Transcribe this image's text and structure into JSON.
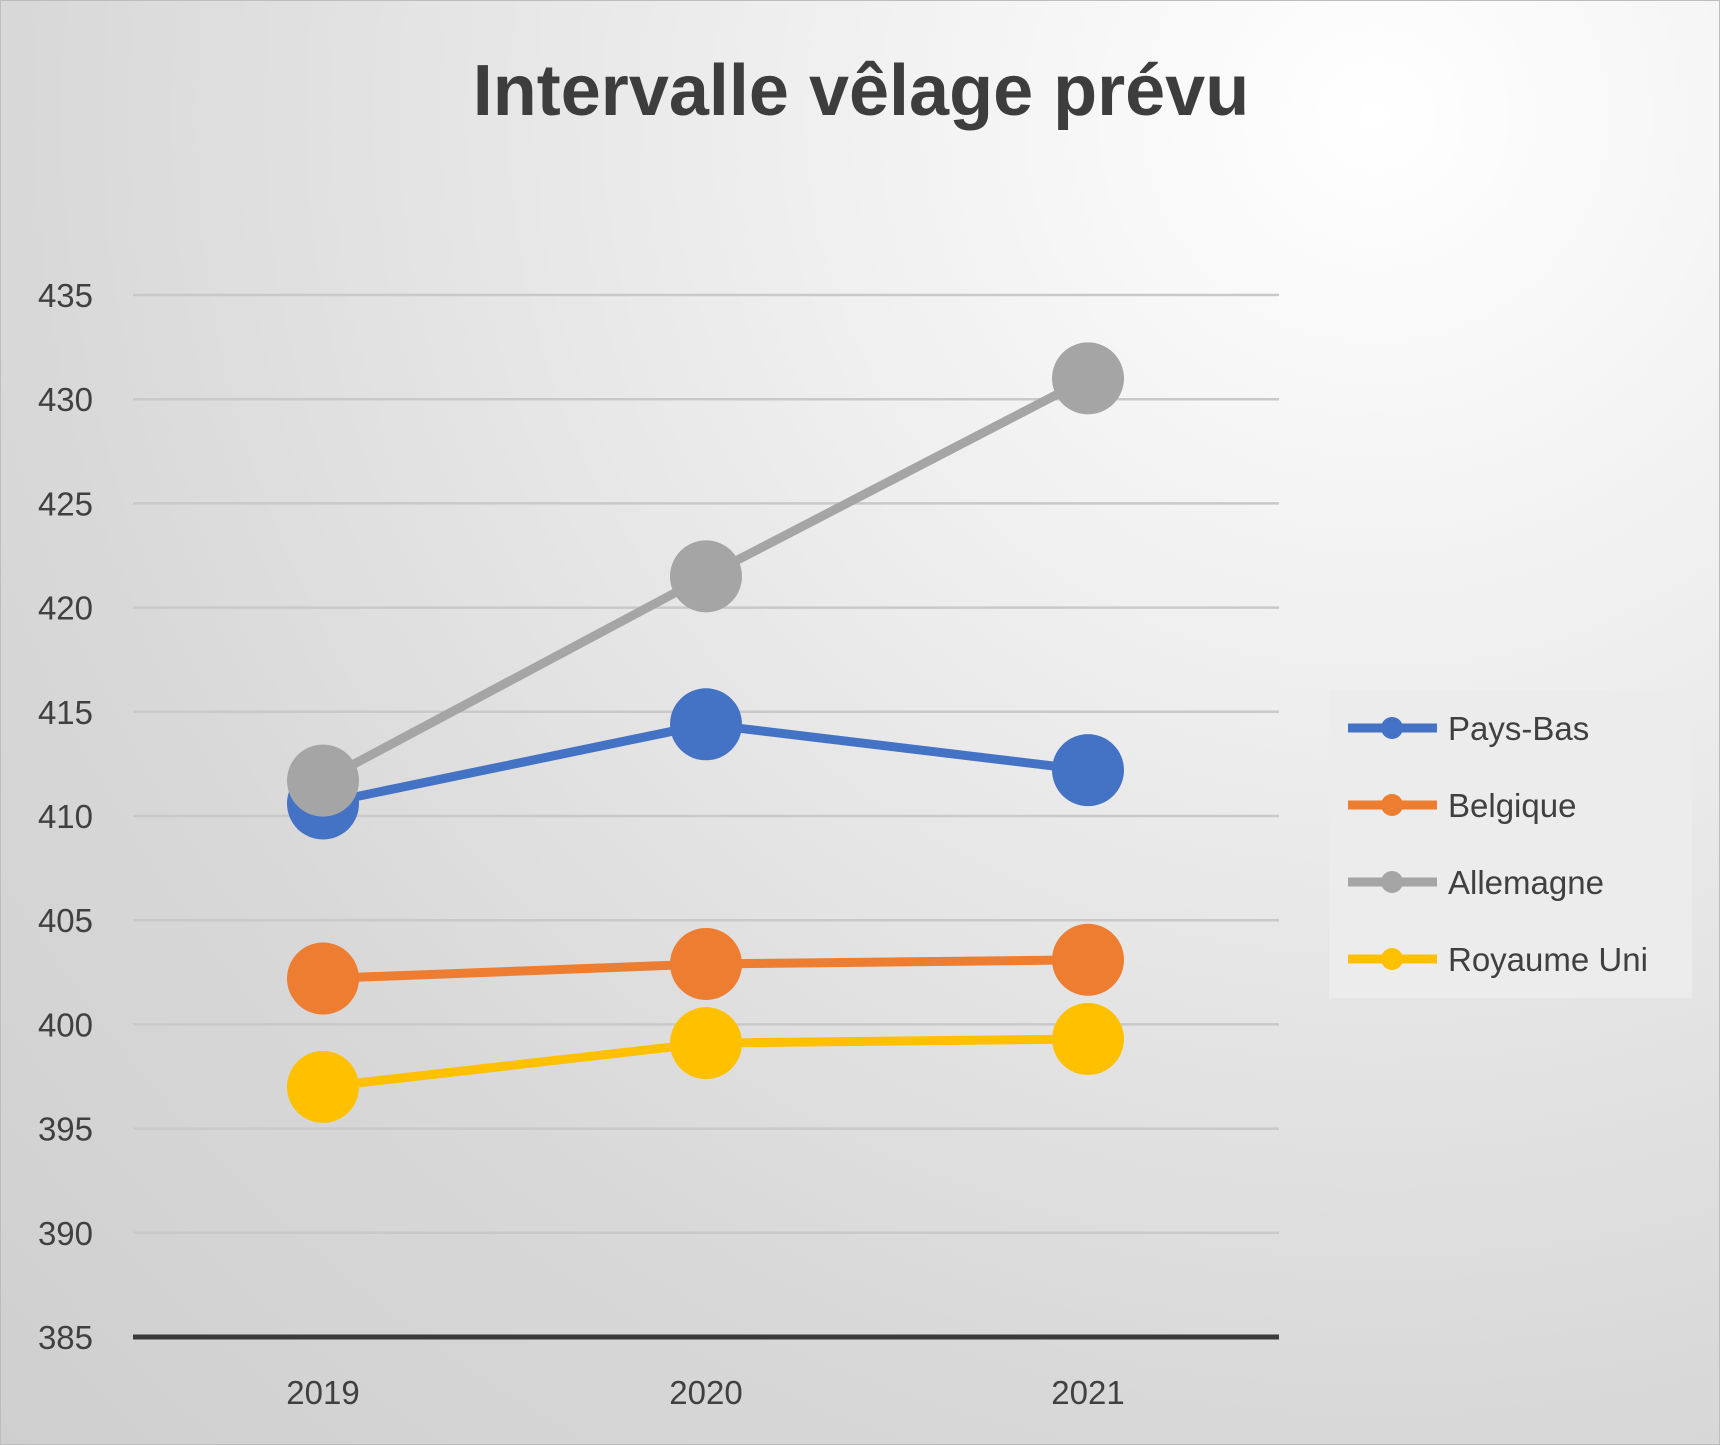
{
  "chart_data": {
    "type": "line",
    "title": "Intervalle vêlage prévu",
    "xlabel": "",
    "ylabel": "",
    "categories": [
      "2019",
      "2020",
      "2021"
    ],
    "ylim": [
      385,
      435
    ],
    "yticks": [
      "435",
      "430",
      "425",
      "420",
      "415",
      "410",
      "405",
      "400",
      "395",
      "390",
      "385"
    ],
    "grid": true,
    "legend_position": "right",
    "series": [
      {
        "name": "Pays-Bas",
        "color": "#4472c4",
        "values": [
          410.6,
          414.4,
          412.2
        ]
      },
      {
        "name": "Belgique",
        "color": "#ed7d31",
        "values": [
          402.2,
          402.9,
          403.1
        ]
      },
      {
        "name": "Allemagne",
        "color": "#a5a5a5",
        "values": [
          411.7,
          421.5,
          431.0
        ]
      },
      {
        "name": "Royaume Uni",
        "color": "#ffc000",
        "values": [
          397.0,
          399.1,
          399.3
        ]
      }
    ]
  }
}
